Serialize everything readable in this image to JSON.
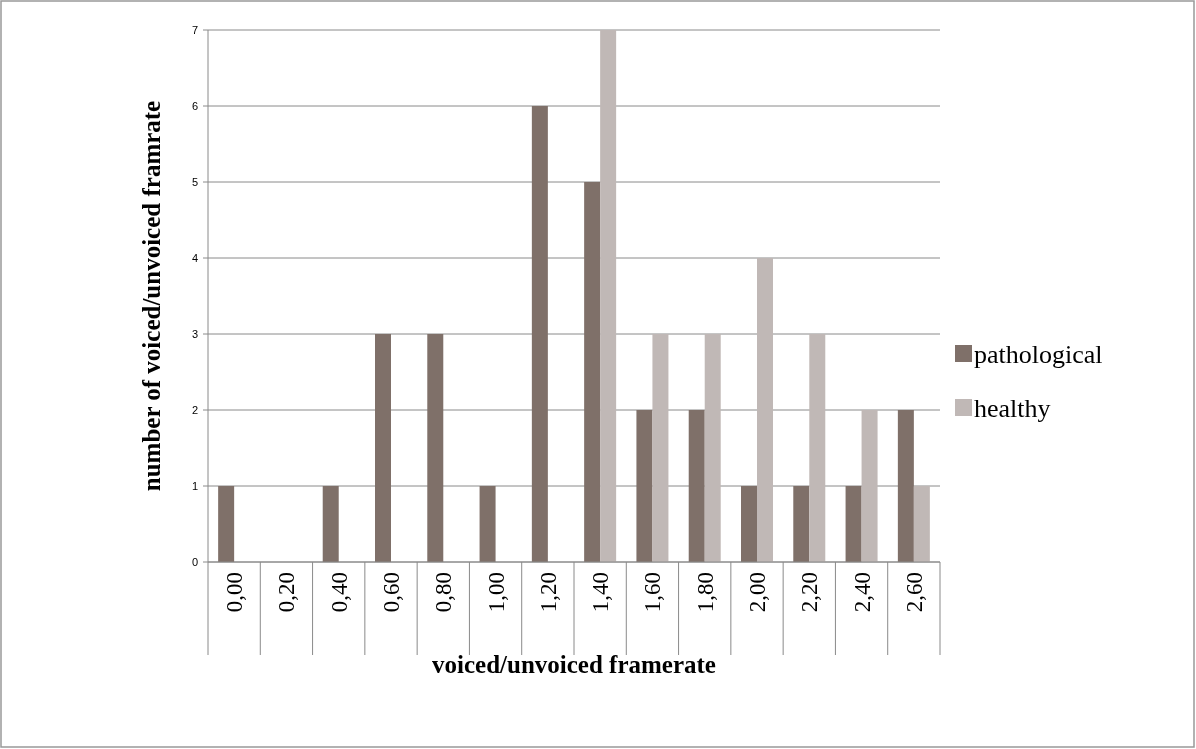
{
  "chart_data": {
    "type": "bar",
    "xlabel": "voiced/unvoiced framerate",
    "ylabel": "number of voiced/unvoiced framrate",
    "categories": [
      "0,00",
      "0,20",
      "0,40",
      "0,60",
      "0,80",
      "1,00",
      "1,20",
      "1,40",
      "1,60",
      "1,80",
      "2,00",
      "2,20",
      "2,40",
      "2,60"
    ],
    "series": [
      {
        "name": "pathological",
        "color": "#7f7069",
        "values": [
          1,
          0,
          1,
          3,
          3,
          1,
          6,
          5,
          2,
          2,
          1,
          1,
          1,
          2
        ]
      },
      {
        "name": "healthy",
        "color": "#c0b8b6",
        "values": [
          0,
          0,
          0,
          0,
          0,
          0,
          0,
          7,
          3,
          3,
          4,
          3,
          2,
          1
        ]
      }
    ],
    "ylim": [
      0,
      7
    ],
    "yticks": [
      0,
      1,
      2,
      3,
      4,
      5,
      6,
      7
    ],
    "grid": "y",
    "legend": "right"
  }
}
